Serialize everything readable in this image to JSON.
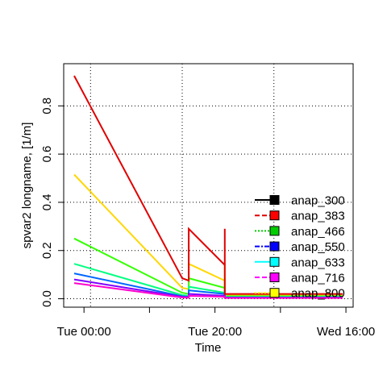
{
  "chart_data": {
    "type": "line",
    "title": "",
    "xlabel": "Time",
    "ylabel": "spvar2 longname, [1/m]",
    "x_ticks": [
      {
        "x": 3,
        "label": "Tue 00:00"
      },
      {
        "x": 23,
        "label": "Tue 20:00"
      },
      {
        "x": 43,
        "label": "Wed 16:00"
      }
    ],
    "x_minor_ticks": [
      13,
      33
    ],
    "x_grid": [
      4,
      18,
      32
    ],
    "xlim": [
      -0.1,
      44.1
    ],
    "ylim": [
      -0.035,
      0.975
    ],
    "y_ticks": [
      0.0,
      0.2,
      0.4,
      0.6,
      0.8
    ],
    "y_tick_labels": [
      "0.0",
      "0.2",
      "0.4",
      "0.6",
      "0.8"
    ],
    "grid": true,
    "legend_position": "right",
    "series": [
      {
        "name": "anap_300",
        "color": "#000000",
        "dash": "solid",
        "points": []
      },
      {
        "name": "anap_383",
        "color": "#FF0000",
        "dash": "dashed",
        "points": [
          [
            1.5,
            0.925
          ],
          [
            18.0,
            0.085
          ],
          [
            19.0,
            0.075
          ],
          [
            19.0,
            0.29
          ],
          [
            24.5,
            0.14
          ],
          [
            24.5,
            0.29
          ],
          [
            24.5,
            0.02
          ],
          [
            42.5,
            0.02
          ]
        ]
      },
      {
        "name": "anap_466",
        "color": "#00CC00",
        "dash": "dotted",
        "points": []
      },
      {
        "name": "anap_550",
        "color": "#0000FF",
        "dash": "dotdash",
        "points": []
      },
      {
        "name": "anap_633",
        "color": "#00FFFF",
        "dash": "solid",
        "points": []
      },
      {
        "name": "anap_716",
        "color": "#FF00FF",
        "dash": "dashed",
        "points": []
      },
      {
        "name": "anap_800",
        "color": "#FFFF00",
        "dash": "dotted",
        "points": []
      }
    ],
    "extra_lines": [
      {
        "color": "#FFD700",
        "points": [
          [
            1.5,
            0.515
          ],
          [
            18.0,
            0.045
          ],
          [
            19.0,
            0.04
          ],
          [
            19.0,
            0.145
          ],
          [
            24.5,
            0.075
          ],
          [
            24.5,
            0.145
          ],
          [
            24.5,
            0.015
          ],
          [
            42.5,
            0.015
          ]
        ]
      },
      {
        "color": "#33FF00",
        "points": [
          [
            1.5,
            0.25
          ],
          [
            18.0,
            0.025
          ],
          [
            19.0,
            0.02
          ],
          [
            19.0,
            0.085
          ],
          [
            24.5,
            0.045
          ],
          [
            24.5,
            0.085
          ],
          [
            24.5,
            0.01
          ],
          [
            42.5,
            0.01
          ]
        ]
      },
      {
        "color": "#00FF80",
        "points": [
          [
            1.5,
            0.145
          ],
          [
            18.0,
            0.015
          ],
          [
            19.0,
            0.012
          ],
          [
            19.0,
            0.05
          ],
          [
            24.5,
            0.025
          ],
          [
            24.5,
            0.05
          ],
          [
            24.5,
            0.008
          ],
          [
            42.5,
            0.008
          ]
        ]
      },
      {
        "color": "#0066FF",
        "points": [
          [
            1.5,
            0.105
          ],
          [
            18.0,
            0.01
          ],
          [
            19.0,
            0.008
          ],
          [
            19.0,
            0.035
          ],
          [
            24.5,
            0.02
          ],
          [
            24.5,
            0.035
          ],
          [
            24.5,
            0.005
          ],
          [
            42.5,
            0.005
          ]
        ]
      },
      {
        "color": "#8000FF",
        "points": [
          [
            1.5,
            0.08
          ],
          [
            18.0,
            0.008
          ],
          [
            19.0,
            0.006
          ],
          [
            19.0,
            0.02
          ],
          [
            24.5,
            0.012
          ],
          [
            24.5,
            0.02
          ],
          [
            24.5,
            0.004
          ],
          [
            42.5,
            0.004
          ]
        ]
      },
      {
        "color": "#FF00CC",
        "points": [
          [
            1.5,
            0.065
          ],
          [
            18.0,
            0.005
          ],
          [
            19.0,
            0.004
          ],
          [
            19.0,
            0.012
          ],
          [
            24.5,
            0.008
          ],
          [
            24.5,
            0.012
          ],
          [
            24.5,
            0.003
          ],
          [
            42.5,
            0.003
          ]
        ]
      }
    ]
  }
}
